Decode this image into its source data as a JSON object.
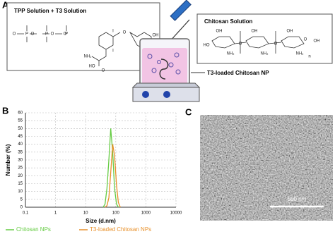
{
  "panels": {
    "a": "A",
    "b": "B",
    "c": "C"
  },
  "scheme": {
    "left_box_title": "TPP Solution + T3 Solution",
    "right_box_title": "Chitosan Solution",
    "product_label": "T3-loaded Chitosan NP",
    "left_atoms": [
      "O",
      "O",
      "O",
      "O",
      "P",
      "P",
      "P",
      "I",
      "I",
      "O",
      "OH",
      "NH₂",
      "HO",
      "O"
    ],
    "right_atoms": [
      "OH",
      "HO",
      "O",
      "NH₂",
      "OH",
      "O",
      "NH₂",
      "OH",
      "O",
      "NH₂",
      "OH",
      "n"
    ]
  },
  "chart_data": {
    "type": "line",
    "xlabel": "Size (d.nm)",
    "ylabel": "Number (%)",
    "xscale": "log",
    "xlim": [
      0.1,
      10000
    ],
    "xticks": [
      0.1,
      1,
      10,
      100,
      1000,
      10000
    ],
    "ylim": [
      0,
      60
    ],
    "yticks": [
      0,
      5,
      10,
      15,
      20,
      25,
      30,
      35,
      40,
      45,
      50,
      55,
      60
    ],
    "grid": true,
    "legend": "bottom",
    "series": [
      {
        "name": "Chitosan NPs",
        "color": "#66cc44",
        "x": [
          38,
          44,
          51,
          59,
          68,
          79,
          91,
          106,
          122
        ],
        "values": [
          0,
          2,
          12,
          30,
          50,
          35,
          12,
          2,
          0
        ]
      },
      {
        "name": "T3-loaded Chitosan NPs",
        "color": "#e8902a",
        "x": [
          44,
          51,
          59,
          68,
          79,
          91,
          106,
          122,
          142
        ],
        "values": [
          0,
          1,
          6,
          22,
          40,
          33,
          14,
          3,
          0
        ]
      }
    ]
  },
  "sem": {
    "scale_bar": "500 nm"
  }
}
